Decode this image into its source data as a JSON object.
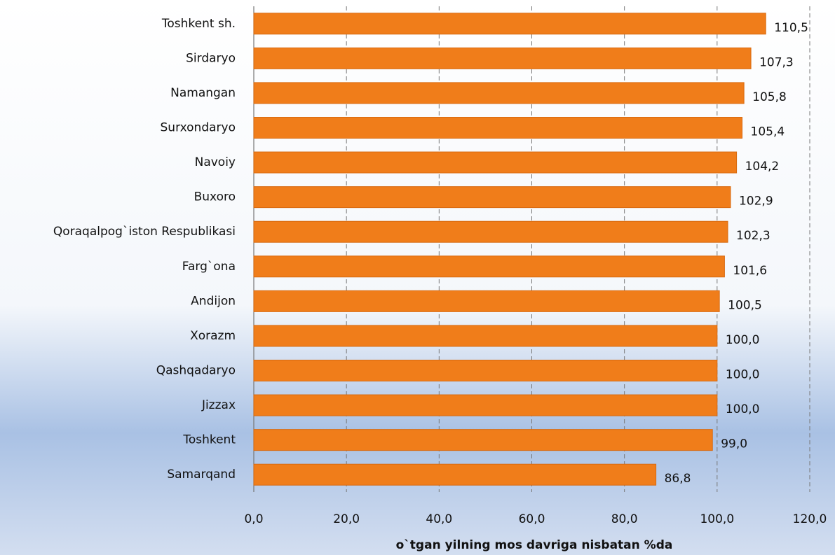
{
  "chart_data": {
    "type": "barh",
    "xlabel": "o`tgan yilning mos davriga nisbatan %da",
    "categories": [
      "Toshkent sh.",
      "Sirdaryo",
      "Namangan",
      "Surxondaryo",
      "Navoiy",
      "Buxoro",
      "Qoraqalpog`iston Respublikasi",
      "Farg`ona",
      "Andijon",
      "Xorazm",
      "Qashqadaryo",
      "Jizzax",
      "Toshkent",
      "Samarqand"
    ],
    "values": [
      110.5,
      107.3,
      105.8,
      105.4,
      104.2,
      102.9,
      102.3,
      101.6,
      100.5,
      100.0,
      100.0,
      100.0,
      99.0,
      86.8
    ],
    "value_labels": [
      "110,5",
      "107,3",
      "105,8",
      "105,4",
      "104,2",
      "102,9",
      "102,3",
      "101,6",
      "100,5",
      "100,0",
      "100,0",
      "100,0",
      "99,0",
      "86,8"
    ],
    "color": "#f07d1a",
    "xlim": [
      0,
      120
    ],
    "xticks": [
      {
        "value": 0,
        "label": "0,0"
      },
      {
        "value": 20,
        "label": "20,0"
      },
      {
        "value": 40,
        "label": "40,0"
      },
      {
        "value": 60,
        "label": "60,0"
      },
      {
        "value": 80,
        "label": "80,0"
      },
      {
        "value": 100,
        "label": "100,0"
      },
      {
        "value": 120,
        "label": "120,0"
      }
    ],
    "grid": true
  }
}
